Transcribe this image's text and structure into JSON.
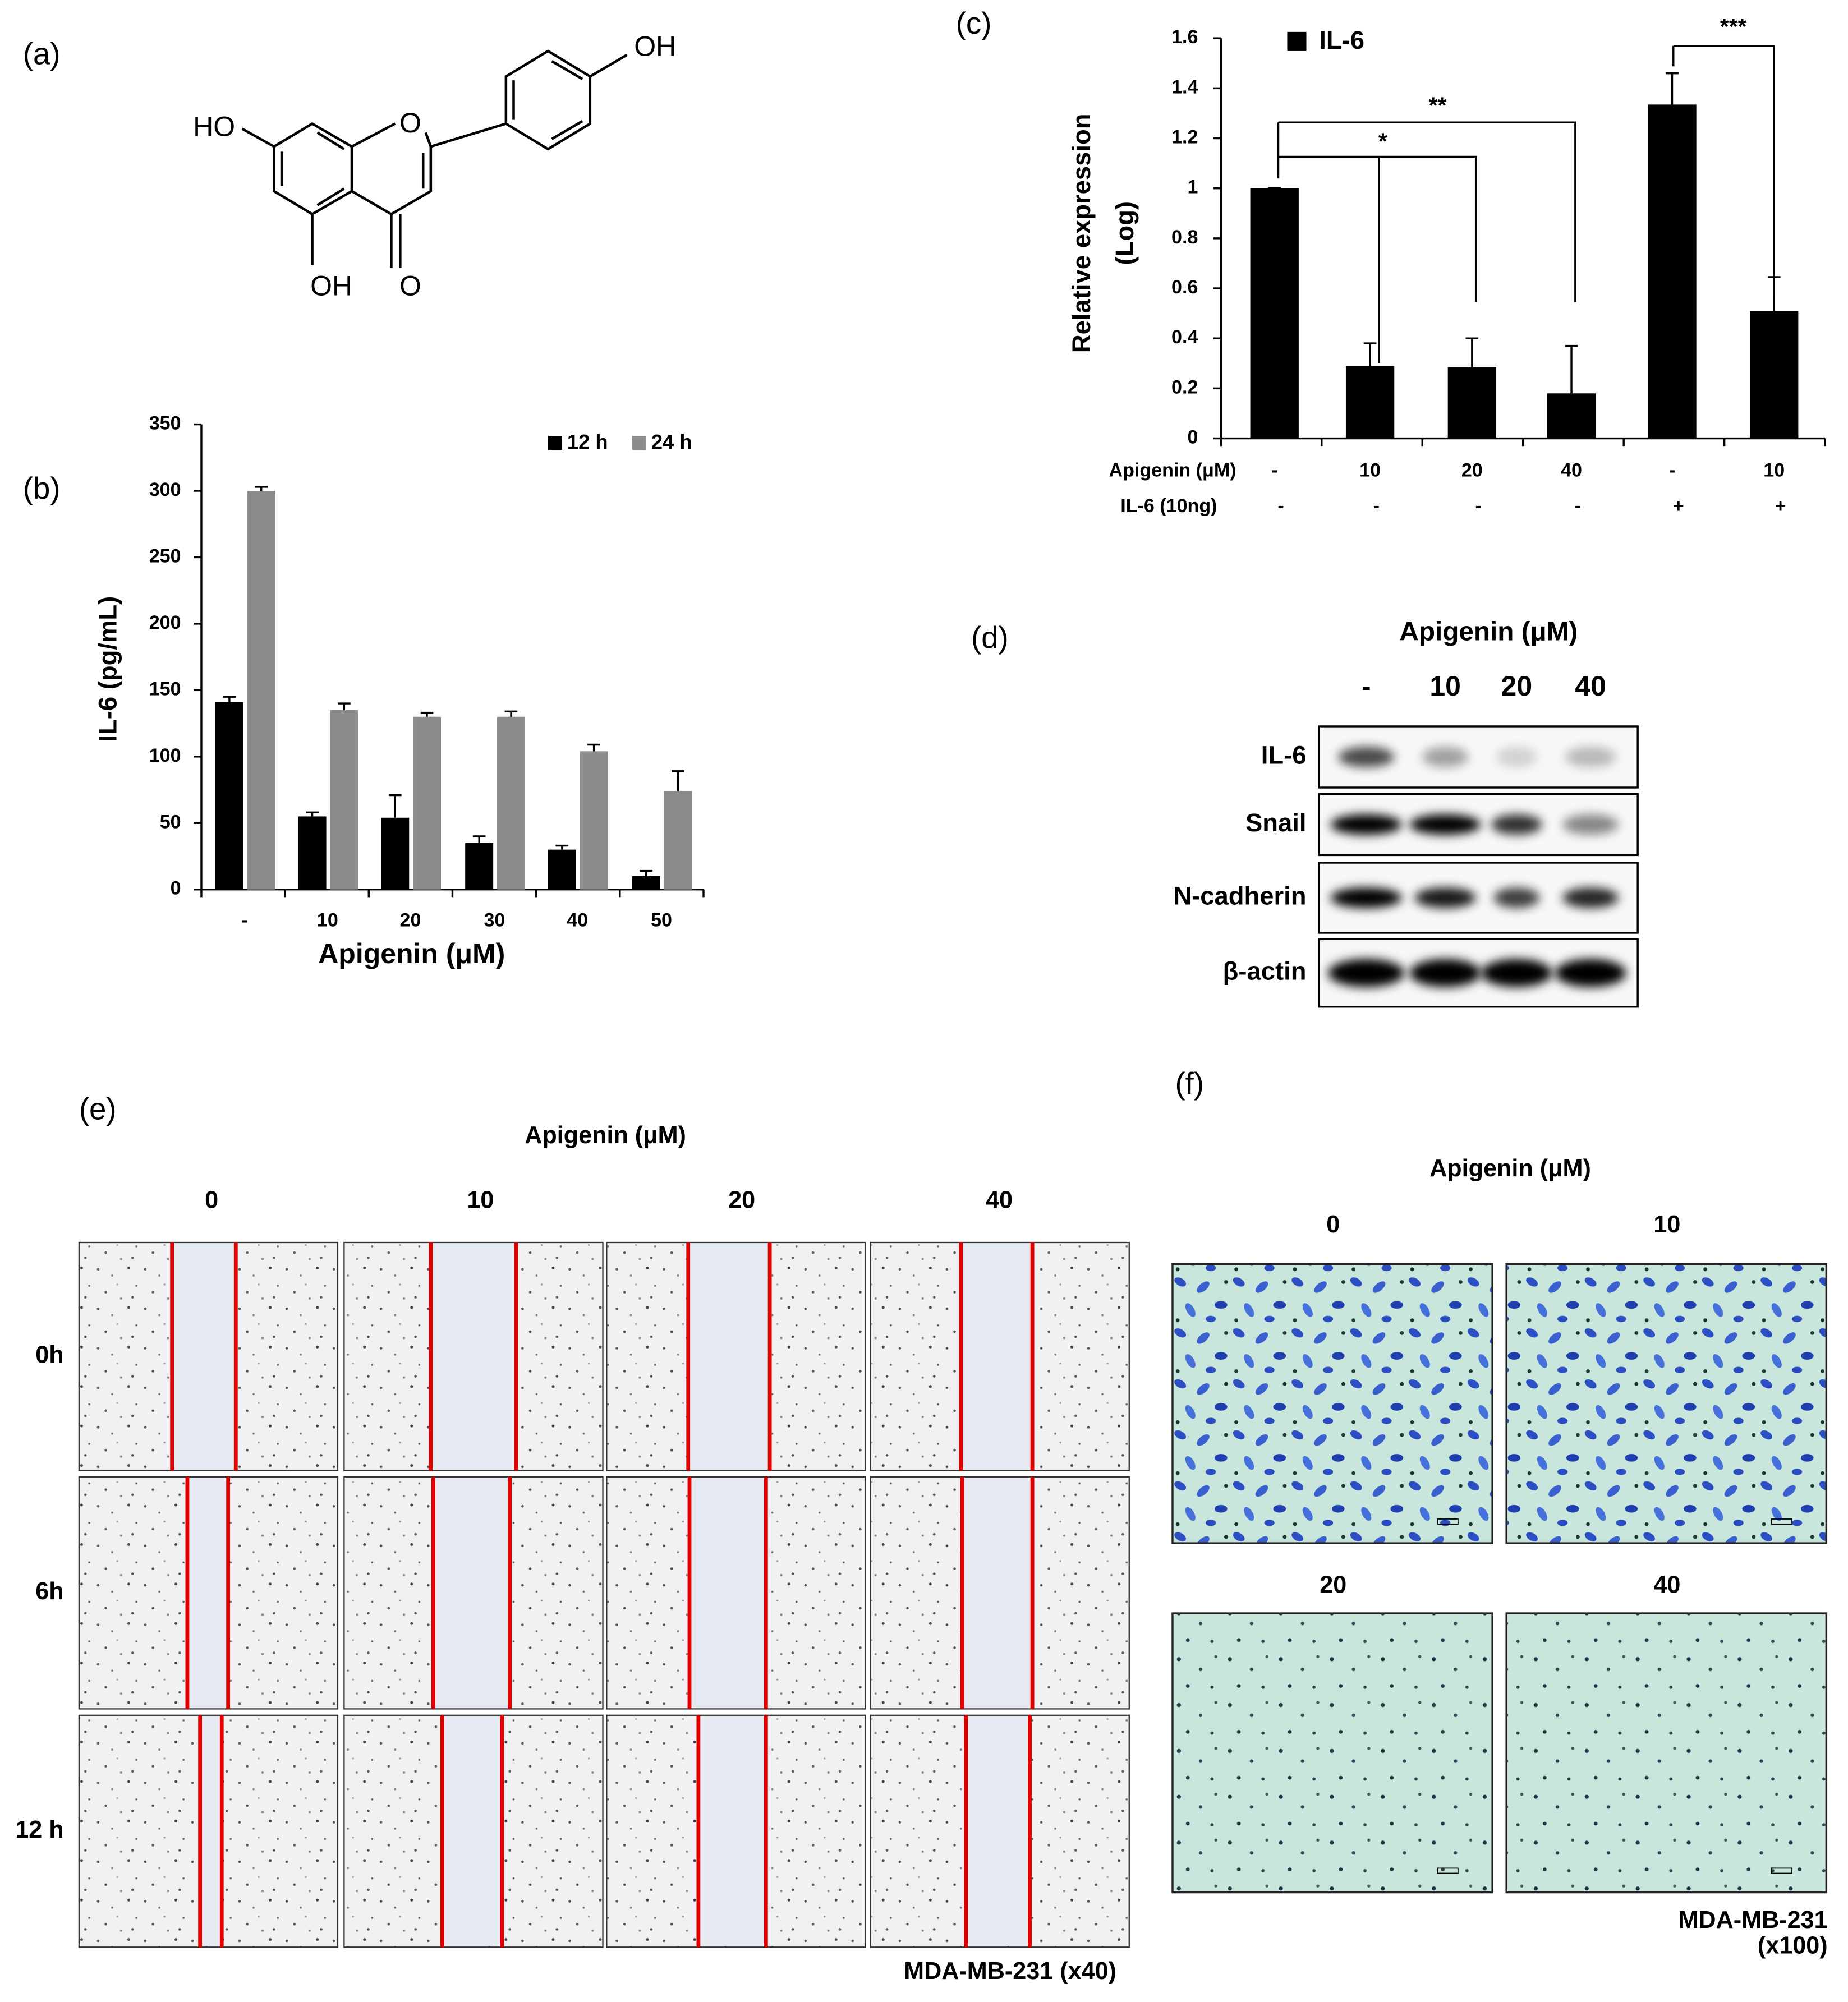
{
  "panel_labels": [
    "(a)",
    "(b)",
    "(c)",
    "(d)",
    "(e)",
    "(f)"
  ],
  "structure": {
    "labels": [
      "HO",
      "OH",
      "O",
      "OH",
      "O"
    ]
  },
  "chart_data": [
    {
      "type": "bar",
      "categories": [
        "-",
        "10",
        "20",
        "30",
        "40",
        "50"
      ],
      "x_label": "Apigenin (μM)",
      "y_label": "IL-6 (pg/mL)",
      "ylim": [
        0,
        350
      ],
      "yticks": [
        0,
        50,
        100,
        150,
        200,
        250,
        300,
        350
      ],
      "legend": "top-right",
      "series": [
        {
          "name": "12 h",
          "color": "#000000",
          "values": [
            141,
            55,
            54,
            35,
            30,
            10
          ],
          "errors": [
            4,
            3,
            17,
            5,
            3,
            4
          ]
        },
        {
          "name": "24 h",
          "color": "#8c8c8c",
          "values": [
            300,
            135,
            130,
            130,
            104,
            74
          ],
          "errors": [
            3,
            5,
            3,
            4,
            5,
            15
          ]
        }
      ]
    },
    {
      "type": "bar",
      "categories": [
        "-",
        "10",
        "20",
        "40",
        "-",
        "10"
      ],
      "categories_2": [
        "-",
        "-",
        "-",
        "-",
        "+",
        "+"
      ],
      "category_labels": [
        "Apigenin (μM)",
        "IL-6 (10ng)"
      ],
      "y_label": [
        "Relative expression",
        "(Log)"
      ],
      "ylim": [
        0,
        1.6
      ],
      "yticks": [
        0,
        0.2,
        0.4,
        0.6,
        0.8,
        1,
        1.2,
        1.4,
        1.6
      ],
      "legend": "top-left",
      "series": [
        {
          "name": "IL-6",
          "color": "#000000",
          "values": [
            1,
            0.29,
            0.285,
            0.18,
            1.335,
            0.51
          ],
          "errors": [
            0,
            0.09,
            0.115,
            0.19,
            0.125,
            0.135
          ]
        }
      ],
      "annotations": [
        "*",
        "**",
        "***"
      ]
    }
  ],
  "blot": {
    "title": "Apigenin (μM)",
    "lanes": [
      "-",
      "10",
      "20",
      "40"
    ],
    "rows": [
      "IL-6",
      "Snail",
      "N-cadherin",
      "β-actin"
    ]
  },
  "wound": {
    "title": "Apigenin (μM)",
    "columns": [
      "0",
      "10",
      "20",
      "40"
    ],
    "rows": [
      "0h",
      "6h",
      "12 h"
    ],
    "caption": "MDA-MB-231 (x40)"
  },
  "invasion": {
    "title": "Apigenin (μM)",
    "panels": [
      "0",
      "10",
      "20",
      "40"
    ],
    "caption": [
      "MDA-MB-231",
      "(x100)"
    ]
  }
}
